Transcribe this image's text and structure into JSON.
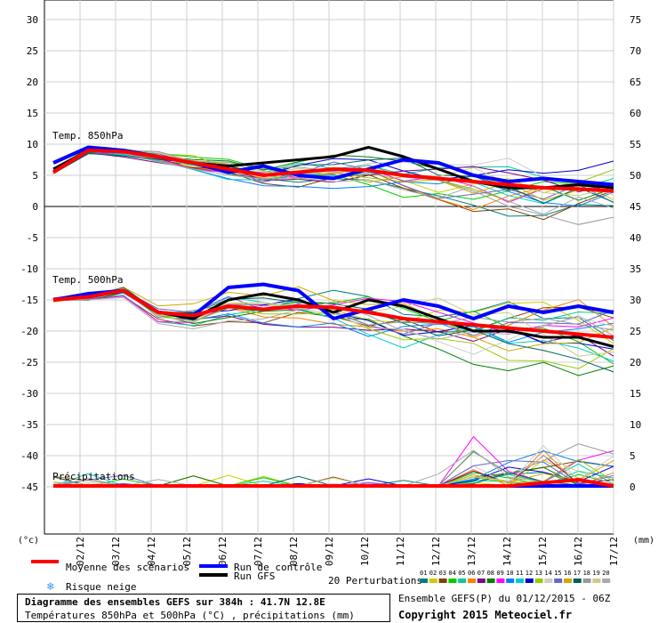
{
  "chart_data": {
    "type": "line",
    "left_axis_unit": "(°c)",
    "right_axis_unit": "(mm)",
    "left_ticks": [
      30,
      25,
      20,
      15,
      10,
      5,
      0,
      -5,
      -10,
      -15,
      -20,
      -25,
      -30,
      -35,
      -40,
      -45
    ],
    "right_ticks": [
      75,
      70,
      65,
      60,
      55,
      50,
      45,
      40,
      35,
      30,
      25,
      20,
      15,
      10,
      5,
      0
    ],
    "dates": [
      "02/12",
      "03/12",
      "04/12",
      "05/12",
      "06/12",
      "07/12",
      "08/12",
      "09/12",
      "10/12",
      "11/12",
      "12/12",
      "13/12",
      "14/12",
      "15/12",
      "16/12",
      "17/12"
    ],
    "panels": [
      {
        "label": "Temp. 850hPa"
      },
      {
        "label": "Temp. 500hPa"
      },
      {
        "label": "Précipitations"
      }
    ],
    "series": [
      {
        "name": "Moyenne des scénarios",
        "color": "#ff0000",
        "width": 4,
        "t850": [
          5.5,
          9,
          8.8,
          8,
          7,
          6,
          5,
          5.5,
          6,
          5.8,
          5,
          4.5,
          4,
          3.5,
          3,
          2.8,
          2.5
        ],
        "t500": [
          -15,
          -14.5,
          -13.5,
          -17,
          -17.5,
          -16,
          -16.5,
          -16,
          -16.2,
          -17,
          -18,
          -18.5,
          -19,
          -19.5,
          -20,
          -20.5,
          -21
        ],
        "precip": [
          0,
          0,
          0,
          0,
          0,
          0,
          0,
          0,
          0,
          0,
          0,
          0,
          0,
          0,
          0.5,
          1,
          0
        ]
      },
      {
        "name": "Run de contrôle",
        "color": "#0000ff",
        "width": 4,
        "t850": [
          7,
          9.5,
          9,
          8,
          7,
          5.5,
          6.5,
          5,
          4.5,
          6,
          7.5,
          7,
          5,
          4,
          4.5,
          4,
          3.5
        ],
        "t500": [
          -15,
          -14,
          -13.5,
          -17,
          -17.5,
          -13,
          -12.5,
          -13.5,
          -18,
          -16.5,
          -15,
          -16,
          -18,
          -16,
          -17,
          -16,
          -17
        ],
        "precip": [
          0,
          0,
          0,
          0,
          0,
          0,
          0,
          0,
          0,
          0,
          0,
          0,
          0,
          0,
          0,
          0,
          0
        ]
      },
      {
        "name": "Run GFS",
        "color": "#000000",
        "width": 3,
        "t850": [
          6,
          9,
          9,
          8,
          7,
          6.5,
          7,
          7.5,
          8,
          9.5,
          8,
          6,
          4,
          3,
          3,
          3.5,
          3
        ],
        "t500": [
          -15,
          -14,
          -13.5,
          -17,
          -18,
          -15,
          -14,
          -15,
          -17,
          -15,
          -16,
          -18,
          -20,
          -20,
          -21,
          -21,
          -22.5
        ],
        "precip": [
          0,
          0,
          0,
          0,
          0,
          0,
          0,
          0,
          0,
          0,
          0,
          0,
          0,
          0,
          0,
          0,
          0
        ]
      }
    ],
    "legend": {
      "mean": "Moyenne des scénarios",
      "control": "Run de contrôle",
      "gfs": "Run GFS",
      "snow": "Risque neige",
      "perturbations": "20 Perturbations",
      "perturbation_ids": [
        "01",
        "02",
        "03",
        "04",
        "05",
        "06",
        "07",
        "08",
        "09",
        "10",
        "11",
        "12",
        "13",
        "14",
        "15",
        "16",
        "17",
        "18",
        "19",
        "20"
      ],
      "perturbation_colors": [
        "#008080",
        "#cccc00",
        "#804000",
        "#00cc00",
        "#00cc99",
        "#ff8000",
        "#800080",
        "#008000",
        "#ff00ff",
        "#0080ff",
        "#00cccc",
        "#0000cc",
        "#99cc00",
        "#cccccc",
        "#6666cc",
        "#ccaa00",
        "#006060",
        "#999999",
        "#cccc88",
        "#aaaaaa"
      ]
    }
  },
  "footer": {
    "title": "Diagramme des ensembles GEFS sur 384h : 41.7N 12.8E",
    "subtitle": "Températures 850hPa et 500hPa (°C) , précipitations (mm)",
    "ensemble": "Ensemble GEFS(P) du 01/12/2015 - 06Z",
    "copyright": "Copyright 2015 Meteociel.fr"
  }
}
